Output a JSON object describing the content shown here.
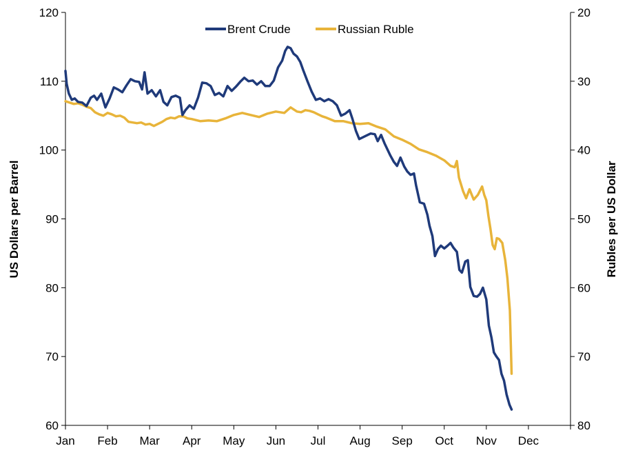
{
  "chart_data": {
    "type": "line",
    "title": "",
    "xlabel": "",
    "ylabel": "US Dollars per Barrel",
    "y2label": "Rubles per US Dollar",
    "ylim": [
      60,
      120
    ],
    "y2lim": [
      20,
      80
    ],
    "y2_inverted": true,
    "yticks": [
      "60",
      "70",
      "80",
      "90",
      "100",
      "110",
      "120"
    ],
    "y2ticks": [
      "20",
      "30",
      "40",
      "50",
      "60",
      "70",
      "80"
    ],
    "months": [
      "Jan",
      "Feb",
      "Mar",
      "Apr",
      "May",
      "Jun",
      "Jul",
      "Aug",
      "Sep",
      "Oct",
      "Nov",
      "Dec"
    ],
    "grid": false,
    "legend": "top-center",
    "series": [
      {
        "name": "Brent Crude",
        "axis": "left",
        "color": "#1f3a7a",
        "points": [
          [
            0.0,
            111.5
          ],
          [
            0.03,
            109.6
          ],
          [
            0.08,
            108.2
          ],
          [
            0.15,
            107.3
          ],
          [
            0.22,
            107.5
          ],
          [
            0.3,
            107.0
          ],
          [
            0.4,
            106.9
          ],
          [
            0.5,
            106.4
          ],
          [
            0.6,
            107.6
          ],
          [
            0.68,
            107.9
          ],
          [
            0.75,
            107.3
          ],
          [
            0.85,
            108.2
          ],
          [
            0.95,
            106.2
          ],
          [
            1.05,
            107.5
          ],
          [
            1.15,
            109.1
          ],
          [
            1.25,
            108.8
          ],
          [
            1.35,
            108.4
          ],
          [
            1.45,
            109.4
          ],
          [
            1.55,
            110.3
          ],
          [
            1.65,
            110.0
          ],
          [
            1.75,
            109.9
          ],
          [
            1.82,
            108.8
          ],
          [
            1.88,
            111.3
          ],
          [
            1.95,
            108.2
          ],
          [
            2.05,
            108.7
          ],
          [
            2.15,
            107.8
          ],
          [
            2.25,
            108.7
          ],
          [
            2.33,
            107.0
          ],
          [
            2.42,
            106.5
          ],
          [
            2.52,
            107.7
          ],
          [
            2.62,
            107.9
          ],
          [
            2.72,
            107.6
          ],
          [
            2.78,
            105.1
          ],
          [
            2.85,
            105.8
          ],
          [
            2.95,
            106.5
          ],
          [
            3.05,
            106.0
          ],
          [
            3.15,
            107.6
          ],
          [
            3.25,
            109.8
          ],
          [
            3.35,
            109.7
          ],
          [
            3.45,
            109.3
          ],
          [
            3.55,
            108.0
          ],
          [
            3.65,
            108.3
          ],
          [
            3.75,
            107.8
          ],
          [
            3.85,
            109.3
          ],
          [
            3.95,
            108.6
          ],
          [
            4.05,
            109.2
          ],
          [
            4.15,
            109.9
          ],
          [
            4.25,
            110.5
          ],
          [
            4.35,
            110.0
          ],
          [
            4.45,
            110.1
          ],
          [
            4.55,
            109.5
          ],
          [
            4.65,
            110.0
          ],
          [
            4.75,
            109.3
          ],
          [
            4.85,
            109.3
          ],
          [
            4.95,
            110.1
          ],
          [
            5.05,
            112.0
          ],
          [
            5.15,
            113.0
          ],
          [
            5.22,
            114.4
          ],
          [
            5.28,
            115.0
          ],
          [
            5.35,
            114.8
          ],
          [
            5.42,
            114.0
          ],
          [
            5.5,
            113.6
          ],
          [
            5.58,
            112.8
          ],
          [
            5.65,
            111.6
          ],
          [
            5.75,
            110.0
          ],
          [
            5.85,
            108.5
          ],
          [
            5.95,
            107.3
          ],
          [
            6.05,
            107.5
          ],
          [
            6.15,
            107.1
          ],
          [
            6.25,
            107.4
          ],
          [
            6.35,
            107.1
          ],
          [
            6.45,
            106.5
          ],
          [
            6.55,
            105.0
          ],
          [
            6.65,
            105.3
          ],
          [
            6.75,
            105.8
          ],
          [
            6.82,
            104.5
          ],
          [
            6.9,
            102.8
          ],
          [
            6.98,
            101.6
          ],
          [
            7.05,
            101.8
          ],
          [
            7.15,
            102.1
          ],
          [
            7.25,
            102.4
          ],
          [
            7.35,
            102.3
          ],
          [
            7.42,
            101.3
          ],
          [
            7.5,
            102.2
          ],
          [
            7.58,
            101.0
          ],
          [
            7.65,
            100.1
          ],
          [
            7.72,
            99.2
          ],
          [
            7.8,
            98.3
          ],
          [
            7.88,
            97.7
          ],
          [
            7.96,
            98.9
          ],
          [
            8.05,
            97.6
          ],
          [
            8.12,
            96.9
          ],
          [
            8.2,
            96.4
          ],
          [
            8.28,
            96.6
          ],
          [
            8.33,
            94.9
          ],
          [
            8.42,
            92.4
          ],
          [
            8.52,
            92.2
          ],
          [
            8.6,
            90.6
          ],
          [
            8.65,
            89.0
          ],
          [
            8.72,
            87.5
          ],
          [
            8.78,
            84.6
          ],
          [
            8.85,
            85.6
          ],
          [
            8.92,
            86.1
          ],
          [
            9.0,
            85.7
          ],
          [
            9.08,
            86.1
          ],
          [
            9.15,
            86.5
          ],
          [
            9.22,
            85.8
          ],
          [
            9.3,
            85.2
          ],
          [
            9.36,
            82.6
          ],
          [
            9.42,
            82.2
          ],
          [
            9.5,
            83.8
          ],
          [
            9.56,
            84.0
          ],
          [
            9.62,
            80.1
          ],
          [
            9.7,
            78.8
          ],
          [
            9.78,
            78.7
          ],
          [
            9.85,
            79.1
          ],
          [
            9.92,
            80.0
          ],
          [
            10.0,
            78.3
          ],
          [
            10.06,
            74.5
          ],
          [
            10.12,
            72.8
          ],
          [
            10.18,
            70.6
          ],
          [
            10.24,
            70.0
          ],
          [
            10.3,
            69.5
          ],
          [
            10.36,
            67.5
          ],
          [
            10.42,
            66.5
          ],
          [
            10.48,
            64.5
          ],
          [
            10.55,
            63.0
          ],
          [
            10.6,
            62.3
          ]
        ]
      },
      {
        "name": "Russian Ruble",
        "axis": "right",
        "color": "#e8b43a",
        "points": [
          [
            0.0,
            32.9
          ],
          [
            0.1,
            33.1
          ],
          [
            0.2,
            33.3
          ],
          [
            0.3,
            33.2
          ],
          [
            0.4,
            33.4
          ],
          [
            0.5,
            33.7
          ],
          [
            0.6,
            33.9
          ],
          [
            0.7,
            34.5
          ],
          [
            0.8,
            34.8
          ],
          [
            0.9,
            35.0
          ],
          [
            1.0,
            34.6
          ],
          [
            1.1,
            34.8
          ],
          [
            1.2,
            35.1
          ],
          [
            1.3,
            35.0
          ],
          [
            1.4,
            35.3
          ],
          [
            1.5,
            35.9
          ],
          [
            1.6,
            36.0
          ],
          [
            1.7,
            36.1
          ],
          [
            1.8,
            36.0
          ],
          [
            1.9,
            36.3
          ],
          [
            2.0,
            36.2
          ],
          [
            2.1,
            36.5
          ],
          [
            2.2,
            36.2
          ],
          [
            2.3,
            35.9
          ],
          [
            2.4,
            35.5
          ],
          [
            2.5,
            35.3
          ],
          [
            2.6,
            35.4
          ],
          [
            2.7,
            35.1
          ],
          [
            2.8,
            35.1
          ],
          [
            2.9,
            35.4
          ],
          [
            3.0,
            35.5
          ],
          [
            3.2,
            35.8
          ],
          [
            3.4,
            35.7
          ],
          [
            3.6,
            35.8
          ],
          [
            3.8,
            35.4
          ],
          [
            4.0,
            34.9
          ],
          [
            4.2,
            34.6
          ],
          [
            4.4,
            34.9
          ],
          [
            4.6,
            35.2
          ],
          [
            4.8,
            34.7
          ],
          [
            5.0,
            34.4
          ],
          [
            5.2,
            34.6
          ],
          [
            5.35,
            33.8
          ],
          [
            5.5,
            34.4
          ],
          [
            5.6,
            34.5
          ],
          [
            5.7,
            34.2
          ],
          [
            5.8,
            34.3
          ],
          [
            5.9,
            34.5
          ],
          [
            6.0,
            34.8
          ],
          [
            6.1,
            35.1
          ],
          [
            6.2,
            35.3
          ],
          [
            6.4,
            35.8
          ],
          [
            6.6,
            35.8
          ],
          [
            6.8,
            36.1
          ],
          [
            7.0,
            36.2
          ],
          [
            7.2,
            36.1
          ],
          [
            7.4,
            36.6
          ],
          [
            7.6,
            37.0
          ],
          [
            7.8,
            38.0
          ],
          [
            8.0,
            38.5
          ],
          [
            8.2,
            39.1
          ],
          [
            8.4,
            39.9
          ],
          [
            8.6,
            40.3
          ],
          [
            8.8,
            40.8
          ],
          [
            9.0,
            41.5
          ],
          [
            9.15,
            42.3
          ],
          [
            9.25,
            42.5
          ],
          [
            9.3,
            41.6
          ],
          [
            9.35,
            44.0
          ],
          [
            9.45,
            46.0
          ],
          [
            9.52,
            47.0
          ],
          [
            9.6,
            45.7
          ],
          [
            9.7,
            47.2
          ],
          [
            9.8,
            46.5
          ],
          [
            9.9,
            45.3
          ],
          [
            9.95,
            46.5
          ],
          [
            10.0,
            47.3
          ],
          [
            10.05,
            49.6
          ],
          [
            10.1,
            51.5
          ],
          [
            10.15,
            53.8
          ],
          [
            10.2,
            54.4
          ],
          [
            10.25,
            52.8
          ],
          [
            10.3,
            52.9
          ],
          [
            10.38,
            53.5
          ],
          [
            10.45,
            56.0
          ],
          [
            10.5,
            58.6
          ],
          [
            10.56,
            63.3
          ],
          [
            10.58,
            68.0
          ],
          [
            10.6,
            72.5
          ]
        ]
      }
    ]
  }
}
